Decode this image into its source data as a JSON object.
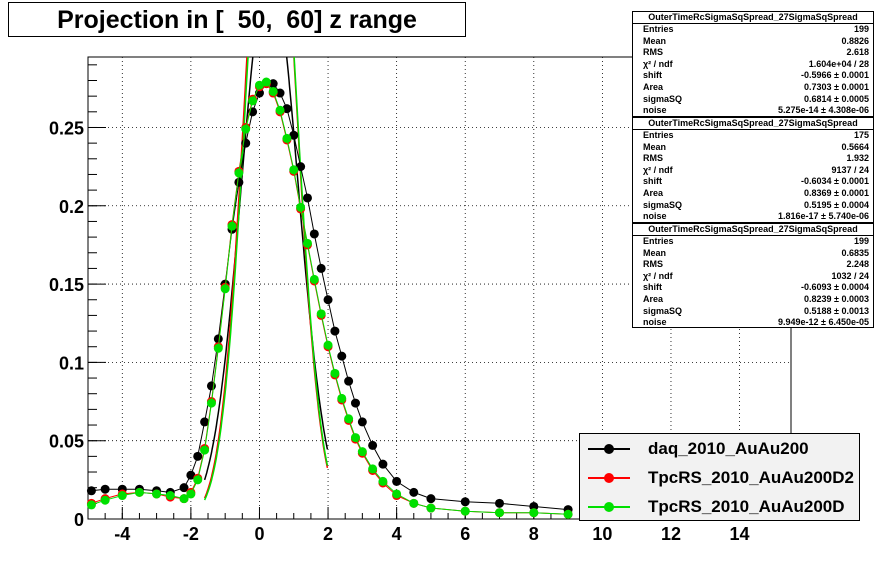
{
  "title": "Projection in [  50,  60] z range",
  "chart_data": {
    "type": "scatter",
    "title": "Projection in [  50,  60] z range",
    "xlim": [
      -5,
      15.5
    ],
    "ylim": [
      0,
      0.295
    ],
    "x_ticks": [
      "-4",
      "-2",
      "0",
      "2",
      "4",
      "6",
      "8",
      "10",
      "12",
      "14"
    ],
    "y_ticks": [
      "0",
      "0.05",
      "0.1",
      "0.15",
      "0.2",
      "0.25"
    ],
    "grid": true,
    "legend_position": "bottom-right",
    "series": [
      {
        "name": "daq_2010_AuAu200",
        "color": "#000000",
        "points": [
          [
            -4.9,
            0.018
          ],
          [
            -4.5,
            0.019
          ],
          [
            -4.0,
            0.019
          ],
          [
            -3.5,
            0.019
          ],
          [
            -3.0,
            0.018
          ],
          [
            -2.6,
            0.017
          ],
          [
            -2.2,
            0.02
          ],
          [
            -2.0,
            0.028
          ],
          [
            -1.8,
            0.04
          ],
          [
            -1.6,
            0.062
          ],
          [
            -1.4,
            0.085
          ],
          [
            -1.2,
            0.115
          ],
          [
            -1.0,
            0.15
          ],
          [
            -0.8,
            0.185
          ],
          [
            -0.6,
            0.215
          ],
          [
            -0.4,
            0.24
          ],
          [
            -0.2,
            0.26
          ],
          [
            0.0,
            0.272
          ],
          [
            0.2,
            0.278
          ],
          [
            0.4,
            0.278
          ],
          [
            0.6,
            0.272
          ],
          [
            0.8,
            0.262
          ],
          [
            1.0,
            0.245
          ],
          [
            1.2,
            0.225
          ],
          [
            1.4,
            0.205
          ],
          [
            1.6,
            0.182
          ],
          [
            1.8,
            0.16
          ],
          [
            2.0,
            0.14
          ],
          [
            2.2,
            0.12
          ],
          [
            2.4,
            0.104
          ],
          [
            2.6,
            0.088
          ],
          [
            2.8,
            0.074
          ],
          [
            3.0,
            0.062
          ],
          [
            3.3,
            0.047
          ],
          [
            3.6,
            0.035
          ],
          [
            4.0,
            0.024
          ],
          [
            4.5,
            0.017
          ],
          [
            5.0,
            0.013
          ],
          [
            6.0,
            0.011
          ],
          [
            7.0,
            0.01
          ],
          [
            8.0,
            0.008
          ],
          [
            9.0,
            0.006
          ]
        ],
        "fit_curve": {
          "shift": -0.5966,
          "sigmaSQ": 0.6814,
          "Area": 0.7303
        }
      },
      {
        "name": "TpcRS_2010_AuAu200D2",
        "color": "#ff0000",
        "points": [
          [
            -4.9,
            0.01
          ],
          [
            -4.5,
            0.013
          ],
          [
            -4.0,
            0.016
          ],
          [
            -3.5,
            0.017
          ],
          [
            -3.0,
            0.016
          ],
          [
            -2.6,
            0.014
          ],
          [
            -2.2,
            0.013
          ],
          [
            -2.0,
            0.017
          ],
          [
            -1.8,
            0.026
          ],
          [
            -1.6,
            0.045
          ],
          [
            -1.4,
            0.075
          ],
          [
            -1.2,
            0.11
          ],
          [
            -1.0,
            0.148
          ],
          [
            -0.8,
            0.188
          ],
          [
            -0.6,
            0.222
          ],
          [
            -0.4,
            0.25
          ],
          [
            -0.2,
            0.268
          ],
          [
            0.0,
            0.276
          ],
          [
            0.2,
            0.278
          ],
          [
            0.4,
            0.272
          ],
          [
            0.6,
            0.26
          ],
          [
            0.8,
            0.242
          ],
          [
            1.0,
            0.222
          ],
          [
            1.2,
            0.198
          ],
          [
            1.4,
            0.175
          ],
          [
            1.6,
            0.152
          ],
          [
            1.8,
            0.13
          ],
          [
            2.0,
            0.11
          ],
          [
            2.2,
            0.092
          ],
          [
            2.4,
            0.076
          ],
          [
            2.6,
            0.063
          ],
          [
            2.8,
            0.051
          ],
          [
            3.0,
            0.042
          ],
          [
            3.3,
            0.031
          ],
          [
            3.6,
            0.023
          ],
          [
            4.0,
            0.015
          ],
          [
            4.5,
            0.01
          ],
          [
            5.0,
            0.007
          ],
          [
            6.0,
            0.005
          ],
          [
            7.0,
            0.004
          ],
          [
            8.0,
            0.004
          ],
          [
            9.0,
            0.003
          ]
        ],
        "fit_curve": {
          "shift": -0.6034,
          "sigmaSQ": 0.5195,
          "Area": 0.8369
        }
      },
      {
        "name": "TpcRS_2010_AuAu200D",
        "color": "#00e000",
        "points": [
          [
            -4.9,
            0.009
          ],
          [
            -4.5,
            0.012
          ],
          [
            -4.0,
            0.015
          ],
          [
            -3.5,
            0.017
          ],
          [
            -3.0,
            0.016
          ],
          [
            -2.6,
            0.015
          ],
          [
            -2.2,
            0.013
          ],
          [
            -2.0,
            0.016
          ],
          [
            -1.8,
            0.025
          ],
          [
            -1.6,
            0.044
          ],
          [
            -1.4,
            0.074
          ],
          [
            -1.2,
            0.109
          ],
          [
            -1.0,
            0.147
          ],
          [
            -0.8,
            0.187
          ],
          [
            -0.6,
            0.221
          ],
          [
            -0.4,
            0.249
          ],
          [
            -0.2,
            0.267
          ],
          [
            0.0,
            0.277
          ],
          [
            0.2,
            0.279
          ],
          [
            0.4,
            0.273
          ],
          [
            0.6,
            0.261
          ],
          [
            0.8,
            0.243
          ],
          [
            1.0,
            0.223
          ],
          [
            1.2,
            0.199
          ],
          [
            1.4,
            0.176
          ],
          [
            1.6,
            0.153
          ],
          [
            1.8,
            0.131
          ],
          [
            2.0,
            0.111
          ],
          [
            2.2,
            0.093
          ],
          [
            2.4,
            0.077
          ],
          [
            2.6,
            0.064
          ],
          [
            2.8,
            0.052
          ],
          [
            3.0,
            0.043
          ],
          [
            3.3,
            0.032
          ],
          [
            3.6,
            0.024
          ],
          [
            4.0,
            0.016
          ],
          [
            4.5,
            0.01
          ],
          [
            5.0,
            0.007
          ],
          [
            6.0,
            0.005
          ],
          [
            7.0,
            0.004
          ],
          [
            8.0,
            0.004
          ],
          [
            9.0,
            0.003
          ]
        ],
        "fit_curve": {
          "shift": -0.6093,
          "sigmaSQ": 0.5188,
          "Area": 0.8239
        }
      }
    ]
  },
  "stats": [
    {
      "title": "OuterTimeRcSigmaSqSpread_27SigmaSqSpread",
      "rows": [
        {
          "name": "Entries",
          "value": "199"
        },
        {
          "name": "Mean",
          "value": "0.8826"
        },
        {
          "name": "RMS",
          "value": "2.618"
        },
        {
          "name": "χ² / ndf",
          "value": "1.604e+04 / 28"
        },
        {
          "name": "shift",
          "value": "-0.5966 ± 0.0001"
        },
        {
          "name": "Area",
          "value": "0.7303 ± 0.0001"
        },
        {
          "name": "sigmaSQ",
          "value": "0.6814 ± 0.0005"
        },
        {
          "name": "noise",
          "value": "5.275e-14 ± 4.308e-06"
        }
      ]
    },
    {
      "title": "OuterTimeRcSigmaSqSpread_27SigmaSqSpread",
      "rows": [
        {
          "name": "Entries",
          "value": "175"
        },
        {
          "name": "Mean",
          "value": "0.5664"
        },
        {
          "name": "RMS",
          "value": "1.932"
        },
        {
          "name": "χ² / ndf",
          "value": "9137 / 24"
        },
        {
          "name": "shift",
          "value": "-0.6034 ± 0.0001"
        },
        {
          "name": "Area",
          "value": "0.8369 ± 0.0001"
        },
        {
          "name": "sigmaSQ",
          "value": "0.5195 ± 0.0004"
        },
        {
          "name": "noise",
          "value": "1.816e-17 ± 5.740e-06"
        }
      ]
    },
    {
      "title": "OuterTimeRcSigmaSqSpread_27SigmaSqSpread",
      "rows": [
        {
          "name": "Entries",
          "value": "199"
        },
        {
          "name": "Mean",
          "value": "0.6835"
        },
        {
          "name": "RMS",
          "value": "2.248"
        },
        {
          "name": "χ² / ndf",
          "value": "1032 / 24"
        },
        {
          "name": "shift",
          "value": "-0.6093 ± 0.0004"
        },
        {
          "name": "Area",
          "value": "0.8239 ± 0.0003"
        },
        {
          "name": "sigmaSQ",
          "value": "0.5188 ± 0.0013"
        },
        {
          "name": "noise",
          "value": "9.949e-12 ± 6.450e-05"
        }
      ]
    }
  ],
  "legend": [
    {
      "label": "daq_2010_AuAu200",
      "color": "#000000"
    },
    {
      "label": "TpcRS_2010_AuAu200D2",
      "color": "#ff0000"
    },
    {
      "label": "TpcRS_2010_AuAu200D",
      "color": "#00e000"
    }
  ]
}
